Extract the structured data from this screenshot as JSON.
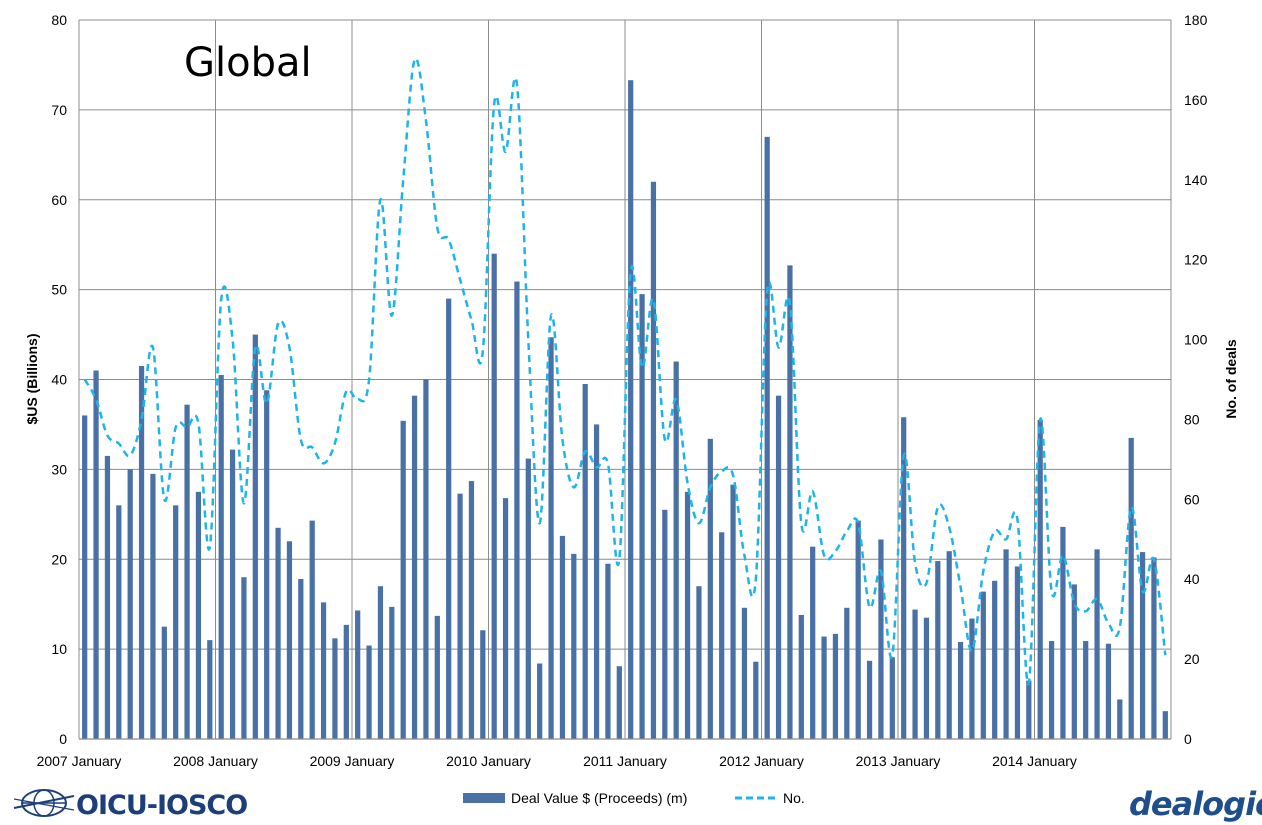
{
  "chart_data": {
    "type": "bar",
    "title": "Global",
    "ylabel_left": "$US (Billions)",
    "ylabel_right": "No. of deals",
    "ylim_left": [
      0,
      80
    ],
    "ylim_right": [
      0,
      180
    ],
    "yticks_left": [
      "0",
      "10",
      "20",
      "30",
      "40",
      "50",
      "60",
      "70",
      "80"
    ],
    "yticks_right": [
      "0",
      "20",
      "40",
      "60",
      "80",
      "100",
      "120",
      "140",
      "160",
      "180"
    ],
    "x_tick_labels": [
      "2007 January",
      "2008 January",
      "2009 January",
      "2010 January",
      "2011 January",
      "2012 January",
      "2013 January",
      "2014 January"
    ],
    "grid": true,
    "legend_position": "bottom",
    "series": [
      {
        "name": "Deal Value $ (Proceeds) (m)",
        "type": "bar",
        "axis": "left",
        "color": "#4a71a5",
        "values": [
          36,
          41,
          31.5,
          26,
          30,
          41.5,
          29.5,
          12.5,
          26,
          37.2,
          27.5,
          11,
          40.5,
          32.2,
          18,
          45,
          38.8,
          23.5,
          22,
          17.8,
          24.3,
          15.2,
          11.2,
          12.7,
          14.3,
          10.4,
          17,
          14.7,
          35.4,
          38.2,
          40,
          13.7,
          49,
          27.3,
          28.7,
          12.1,
          54,
          26.8,
          50.9,
          31.2,
          8.4,
          44.7,
          22.6,
          20.6,
          39.5,
          35,
          19.5,
          8.1,
          73.3,
          49.5,
          62,
          25.5,
          42,
          27.5,
          17,
          33.4,
          23,
          28.3,
          14.6,
          8.6,
          67,
          38.2,
          52.7,
          13.8,
          21.4,
          11.4,
          11.7,
          14.6,
          24.3,
          8.7,
          22.2,
          9.1,
          35.8,
          14.4,
          13.5,
          19.8,
          20.9,
          10.8,
          13.4,
          16.4,
          17.6,
          21.1,
          19.2,
          6.5,
          35.5,
          10.9,
          23.6,
          17.2,
          10.9,
          21.1,
          10.6,
          4.4,
          33.5,
          20.8,
          20.2,
          3.1
        ]
      },
      {
        "name": "No.",
        "type": "line",
        "style": "dashed",
        "axis": "right",
        "color": "#1eb4e8",
        "values": [
          90,
          85,
          76,
          74,
          71,
          80,
          98,
          60,
          78,
          78,
          79,
          48,
          110,
          100,
          59,
          98,
          84,
          104,
          98,
          75,
          73,
          69,
          74,
          87,
          85,
          90,
          135,
          106,
          140,
          170,
          155,
          128,
          125,
          115,
          105,
          97,
          159,
          147,
          164,
          100,
          54,
          106,
          75,
          63,
          72,
          68,
          69,
          45,
          117,
          93,
          110,
          75,
          85,
          64,
          54,
          63,
          67,
          66,
          46,
          40,
          112,
          98,
          109,
          54,
          62,
          46,
          47,
          52,
          54,
          33,
          42,
          21,
          71,
          44,
          39,
          58,
          53,
          38,
          22,
          42,
          52,
          50,
          55,
          14,
          80,
          37,
          46,
          34,
          32,
          35,
          29,
          28,
          58,
          37,
          45,
          21
        ]
      }
    ]
  },
  "logos": {
    "left": "OICU-IOSCO",
    "right": "dealogic"
  }
}
